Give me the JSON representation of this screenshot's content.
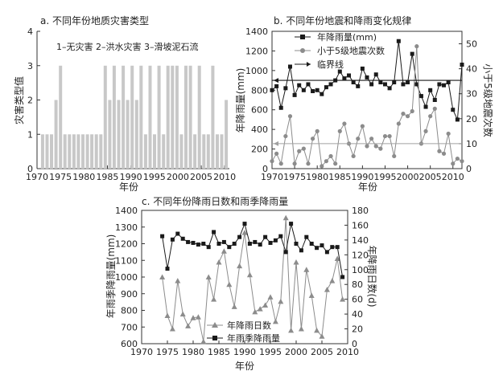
{
  "chart_data": [
    {
      "type": "bar",
      "title": "a. 不同年份地质灾害类型",
      "xlabel": "年份",
      "ylabel": "灾害类型值",
      "annotation": "1–无灾害  2–洪水灾害  3–滑坡泥石流",
      "xlim": [
        1970,
        2011
      ],
      "xticks": [
        1970,
        1975,
        1980,
        1985,
        1990,
        1995,
        2000,
        2005,
        2010
      ],
      "ylim": [
        0,
        4
      ],
      "yticks": [
        0,
        1,
        2,
        3,
        4
      ],
      "series": [
        {
          "color": "#c8c8c8",
          "x": [
            1970,
            1971,
            1972,
            1973,
            1974,
            1975,
            1976,
            1977,
            1978,
            1979,
            1980,
            1981,
            1982,
            1983,
            1984,
            1985,
            1986,
            1987,
            1988,
            1989,
            1990,
            1991,
            1992,
            1993,
            1994,
            1995,
            1996,
            1997,
            1998,
            1999,
            2000,
            2001,
            2002,
            2003,
            2004,
            2005,
            2006,
            2007,
            2008,
            2009,
            2010,
            2011
          ],
          "values": [
            1,
            1,
            1,
            2,
            3,
            1,
            1,
            1,
            1,
            1,
            1,
            1,
            1,
            1,
            3,
            2,
            3,
            2,
            3,
            2,
            3,
            2,
            3,
            1,
            3,
            1,
            3,
            1,
            3,
            3,
            3,
            1,
            3,
            3,
            1,
            3,
            1,
            1,
            3,
            1,
            1,
            2
          ]
        }
      ]
    },
    {
      "type": "line",
      "title": "b. 不同年份地震和降雨变化规律",
      "xlabel": "年份",
      "ylabel": "年降雨量(mm)",
      "y2label": "小于5级地震次数",
      "xlim": [
        1970,
        2012
      ],
      "xticks": [
        1970,
        1975,
        1980,
        1985,
        1990,
        1995,
        2000,
        2005,
        2010
      ],
      "ylim": [
        0,
        1400
      ],
      "yticks": [
        0,
        200,
        400,
        600,
        800,
        1000,
        1200,
        1400
      ],
      "y2lim": [
        0,
        55
      ],
      "y2ticks": [
        0,
        10,
        20,
        30,
        40,
        50
      ],
      "legend": "top-right",
      "series": [
        {
          "name": "年降雨量(mm)",
          "axis": "left",
          "marker": "square",
          "color": "#1a1a1a",
          "x": [
            1970,
            1971,
            1972,
            1973,
            1974,
            1975,
            1976,
            1977,
            1978,
            1979,
            1980,
            1981,
            1982,
            1983,
            1984,
            1985,
            1986,
            1987,
            1988,
            1989,
            1990,
            1991,
            1992,
            1993,
            1994,
            1995,
            1996,
            1997,
            1998,
            1999,
            2000,
            2001,
            2002,
            2003,
            2004,
            2005,
            2006,
            2007,
            2008,
            2009,
            2010,
            2011,
            2012
          ],
          "values": [
            800,
            840,
            620,
            820,
            1040,
            750,
            850,
            800,
            860,
            790,
            800,
            760,
            830,
            860,
            900,
            990,
            920,
            950,
            880,
            840,
            1020,
            930,
            860,
            960,
            880,
            860,
            820,
            880,
            1300,
            860,
            880,
            1170,
            860,
            740,
            630,
            800,
            700,
            860,
            850,
            880,
            600,
            500,
            1060
          ]
        },
        {
          "name": "小于5级地震次数",
          "axis": "right",
          "marker": "circle",
          "color": "#8c8c8c",
          "x": [
            1970,
            1971,
            1972,
            1973,
            1974,
            1975,
            1976,
            1977,
            1978,
            1979,
            1980,
            1981,
            1982,
            1983,
            1984,
            1985,
            1986,
            1987,
            1988,
            1989,
            1990,
            1991,
            1992,
            1993,
            1994,
            1995,
            1996,
            1997,
            1998,
            1999,
            2000,
            2001,
            2002,
            2003,
            2004,
            2005,
            2006,
            2007,
            2008,
            2009,
            2010,
            2011,
            2012
          ],
          "values": [
            3,
            6,
            2,
            13,
            21,
            2,
            7,
            8,
            2,
            12,
            15,
            1,
            3,
            5,
            2,
            15,
            18,
            10,
            5,
            12,
            17,
            9,
            12,
            9,
            8,
            13,
            13,
            5,
            18,
            22,
            21,
            23,
            49,
            10,
            15,
            21,
            24,
            7,
            6,
            14,
            2,
            4,
            3
          ]
        },
        {
          "name": "临界线",
          "axis": "left",
          "marker": "none",
          "color": "#1a1a1a",
          "constant": 900
        },
        {
          "axis": "right",
          "marker": "none",
          "color": "#a0a0a0",
          "constant": 10
        }
      ]
    },
    {
      "type": "line",
      "title": "c. 不同年份降雨日数和雨季降雨量",
      "xlabel": "年份",
      "ylabel": "年雨季降雨量(mm)",
      "y2label": "年降雨日数(d)",
      "xlim": [
        1970,
        2010
      ],
      "xticks": [
        1970,
        1975,
        1980,
        1985,
        1990,
        1995,
        2000,
        2005,
        2010
      ],
      "ylim": [
        600,
        1400
      ],
      "yticks": [
        600,
        700,
        800,
        900,
        1000,
        1100,
        1200,
        1300,
        1400
      ],
      "y2lim": [
        0,
        180
      ],
      "y2ticks": [
        0,
        20,
        40,
        60,
        80,
        100,
        120,
        140,
        160,
        180
      ],
      "legend": "bottom-center",
      "series": [
        {
          "name": "年降雨日数",
          "axis": "right",
          "marker": "triangle",
          "color": "#8c8c8c",
          "x": [
            1974,
            1975,
            1976,
            1977,
            1978,
            1979,
            1980,
            1981,
            1982,
            1983,
            1984,
            1985,
            1986,
            1987,
            1988,
            1989,
            1990,
            1991,
            1992,
            1993,
            1994,
            1995,
            1996,
            1997,
            1998,
            1999,
            2000,
            2001,
            2002,
            2003,
            2004,
            2005,
            2006,
            2007,
            2008,
            2009
          ],
          "values": [
            90,
            38,
            20,
            85,
            40,
            24,
            35,
            36,
            3,
            90,
            60,
            110,
            125,
            80,
            50,
            105,
            150,
            93,
            43,
            47,
            52,
            63,
            30,
            57,
            170,
            18,
            110,
            20,
            100,
            65,
            18,
            10,
            73,
            85,
            115,
            60
          ]
        },
        {
          "name": "年雨季降雨量",
          "axis": "left",
          "marker": "square",
          "color": "#1a1a1a",
          "x": [
            1974,
            1975,
            1976,
            1977,
            1978,
            1979,
            1980,
            1981,
            1982,
            1983,
            1984,
            1985,
            1986,
            1987,
            1988,
            1989,
            1990,
            1991,
            1992,
            1993,
            1994,
            1995,
            1996,
            1997,
            1998,
            1999,
            2000,
            2001,
            2002,
            2003,
            2004,
            2005,
            2006,
            2007,
            2008,
            2009
          ],
          "values": [
            1245,
            1050,
            1225,
            1260,
            1230,
            1210,
            1205,
            1195,
            1200,
            1180,
            1270,
            1200,
            1210,
            1180,
            1200,
            1240,
            1320,
            1200,
            1210,
            1195,
            1240,
            1205,
            1220,
            1245,
            1150,
            1320,
            1200,
            1160,
            1240,
            1200,
            1175,
            1190,
            1150,
            1180,
            1180,
            1000
          ]
        }
      ]
    }
  ],
  "panels": [
    {
      "title": "a. 不同年份地质灾害类型",
      "xlabel": "年份",
      "ylabel": "灾害类型值",
      "annotation": "1–无灾害  2–洪水灾害  3–滑坡泥石流"
    },
    {
      "title": "b. 不同年份地震和降雨变化规律",
      "xlabel": "年份",
      "ylabel": "年降雨量(mm)",
      "y2label": "小于5级地震次数",
      "legend": [
        "年降雨量(mm)",
        "小于5级地震次数",
        "临界线"
      ]
    },
    {
      "title": "c. 不同年份降雨日数和雨季降雨量",
      "xlabel": "年份",
      "ylabel": "年雨季降雨量(mm)",
      "y2label": "年降雨日数(d)",
      "legend": [
        "年降雨日数",
        "年雨季降雨量"
      ]
    }
  ]
}
